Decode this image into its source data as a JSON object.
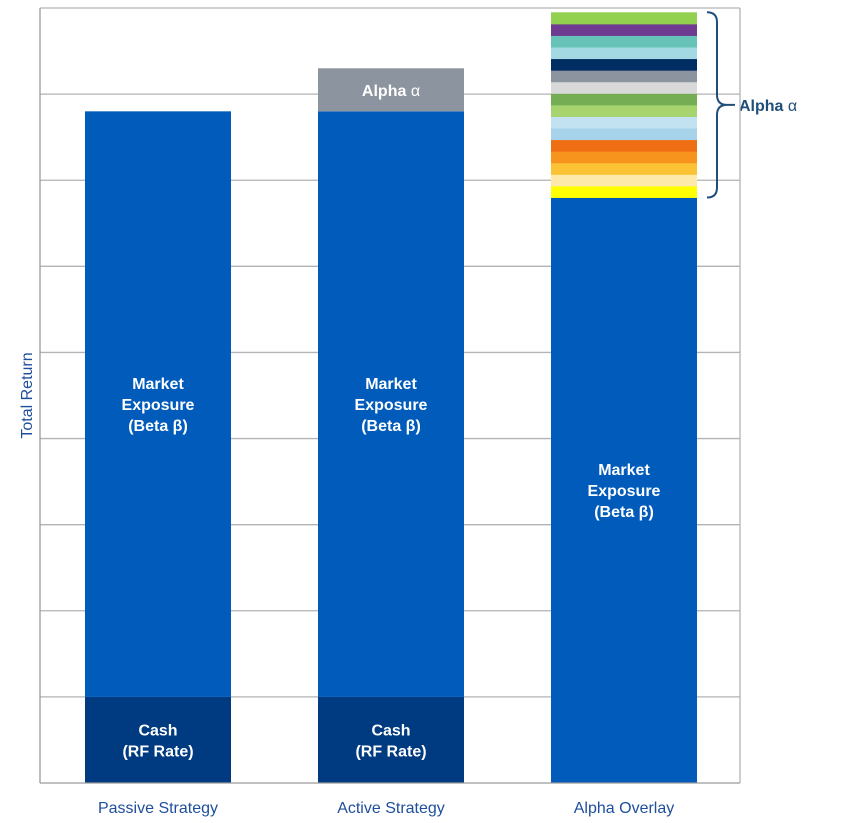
{
  "chart_data": {
    "type": "bar",
    "stacked": true,
    "ylabel": "Total Return",
    "ylim": [
      0,
      9
    ],
    "grid": true,
    "y_tick_labels_shown": false,
    "categories": [
      "Passive Strategy",
      "Active Strategy",
      "Alpha Overlay"
    ],
    "segments": [
      {
        "category": "Passive Strategy",
        "label_lines": [
          "Cash",
          "(RF Rate)"
        ],
        "start": 0,
        "end": 1,
        "color": "#003a80",
        "text_color": "#ffffff"
      },
      {
        "category": "Passive Strategy",
        "label_lines": [
          "Market",
          "Exposure",
          "(Beta β)"
        ],
        "start": 1,
        "end": 7.8,
        "color": "#005bbb",
        "text_color": "#ffffff"
      },
      {
        "category": "Active Strategy",
        "label_lines": [
          "Cash",
          "(RF Rate)"
        ],
        "start": 0,
        "end": 1,
        "color": "#003a80",
        "text_color": "#ffffff"
      },
      {
        "category": "Active Strategy",
        "label_lines": [
          "Market",
          "Exposure",
          "(Beta β)"
        ],
        "start": 1,
        "end": 7.8,
        "color": "#005bbb",
        "text_color": "#ffffff"
      },
      {
        "category": "Active Strategy",
        "label_lines": [
          "Alpha α"
        ],
        "start": 7.8,
        "end": 8.3,
        "color": "#8c959f",
        "text_color": "#ffffff"
      },
      {
        "category": "Alpha Overlay",
        "label_lines": [
          "Market",
          "Exposure",
          "(Beta β)"
        ],
        "start": 0,
        "end": 6.8,
        "color": "#005bbb",
        "text_color": "#ffffff"
      }
    ],
    "alpha_overlay_stripes": {
      "category": "Alpha Overlay",
      "start": 6.8,
      "end": 8.95,
      "colors": [
        "#ffff00",
        "#fde9a9",
        "#fbc233",
        "#f7941d",
        "#f06e13",
        "#a7d3ea",
        "#c2e2f1",
        "#a7d46f",
        "#75ad54",
        "#d9d9d9",
        "#8c959f",
        "#002d62",
        "#a3d9e3",
        "#67c3b8",
        "#6e3b91",
        "#92d050"
      ]
    },
    "annotations": [
      {
        "text": "Alpha α",
        "bold_part": "Alpha",
        "target": "Alpha Overlay",
        "from": 6.8,
        "to": 8.95,
        "color": "#1f4e79"
      }
    ]
  }
}
